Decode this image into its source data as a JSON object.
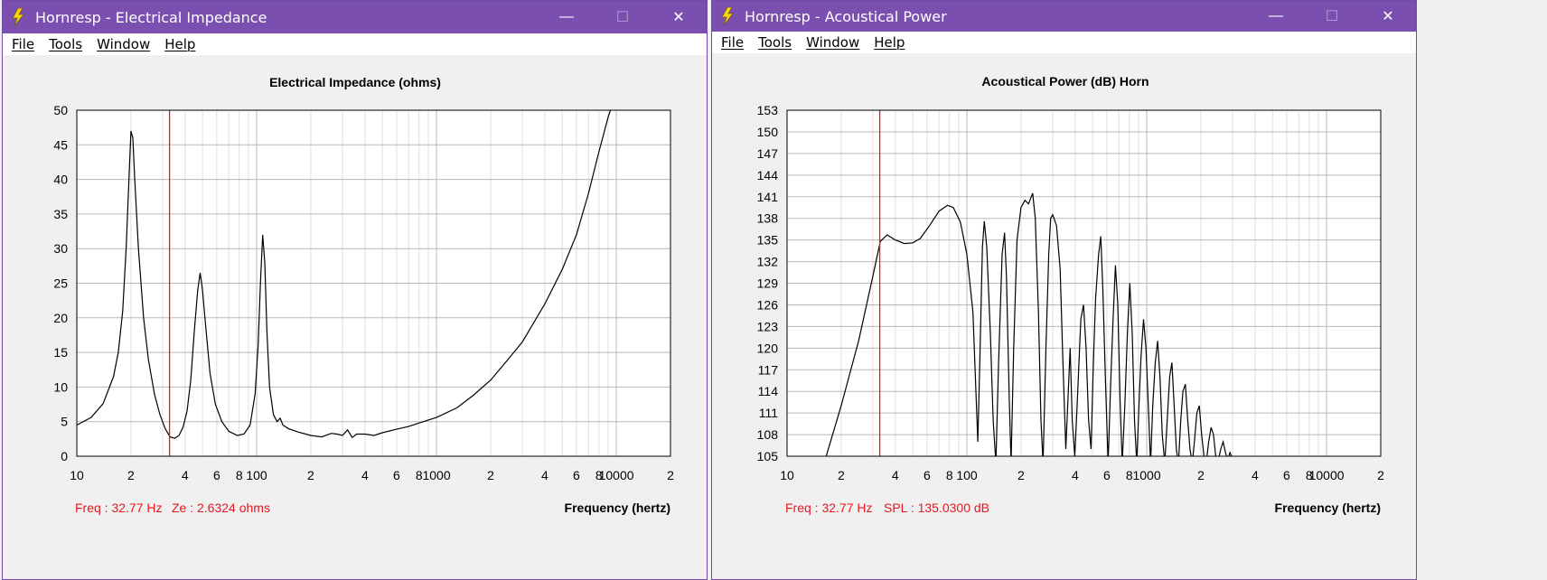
{
  "windows": [
    {
      "title": "Hornresp - Electrical Impedance",
      "menu": [
        "File",
        "Tools",
        "Window",
        "Help"
      ],
      "controls": {
        "minimize": "—",
        "maximize": "☐",
        "close": "✕"
      },
      "chart_data": {
        "type": "line",
        "title": "Electrical Impedance (ohms)",
        "xlabel": "Frequency (hertz)",
        "ylabel": "",
        "x_scale": "log",
        "xlim": [
          10,
          20000
        ],
        "ylim": [
          0,
          50
        ],
        "y_ticks": [
          0,
          5,
          10,
          15,
          20,
          25,
          30,
          35,
          40,
          45,
          50
        ],
        "x_ticks": [
          {
            "v": 10,
            "label": "10"
          },
          {
            "v": 20,
            "label": "2"
          },
          {
            "v": 40,
            "label": "4"
          },
          {
            "v": 60,
            "label": "6"
          },
          {
            "v": 80,
            "label": "8"
          },
          {
            "v": 100,
            "label": "100"
          },
          {
            "v": 200,
            "label": "2"
          },
          {
            "v": 400,
            "label": "4"
          },
          {
            "v": 600,
            "label": "6"
          },
          {
            "v": 800,
            "label": "8"
          },
          {
            "v": 1000,
            "label": "1000"
          },
          {
            "v": 2000,
            "label": "2"
          },
          {
            "v": 4000,
            "label": "4"
          },
          {
            "v": 6000,
            "label": "6"
          },
          {
            "v": 8000,
            "label": "8"
          },
          {
            "v": 10000,
            "label": "10000"
          },
          {
            "v": 20000,
            "label": "2"
          }
        ],
        "grid": true,
        "cursor_x": 32.77,
        "readout": {
          "freq": "Freq : 32.77 Hz",
          "value": "Ze : 2.6324 ohms"
        },
        "series": [
          {
            "points": [
              [
                10,
                4.5
              ],
              [
                12,
                5.6
              ],
              [
                14,
                7.6
              ],
              [
                16,
                11.5
              ],
              [
                17,
                15
              ],
              [
                18,
                21
              ],
              [
                18.8,
                30
              ],
              [
                19.5,
                40
              ],
              [
                20,
                47
              ],
              [
                20.5,
                46
              ],
              [
                21,
                40
              ],
              [
                22,
                30
              ],
              [
                23.5,
                20
              ],
              [
                25,
                14
              ],
              [
                27,
                9
              ],
              [
                29,
                6
              ],
              [
                31,
                4
              ],
              [
                33,
                2.8
              ],
              [
                35,
                2.6
              ],
              [
                37,
                3.0
              ],
              [
                39,
                4.2
              ],
              [
                41,
                6.5
              ],
              [
                43,
                11
              ],
              [
                45,
                18
              ],
              [
                47,
                24
              ],
              [
                48.5,
                26.5
              ],
              [
                50,
                24
              ],
              [
                52,
                19
              ],
              [
                55,
                12
              ],
              [
                59,
                7.5
              ],
              [
                64,
                5
              ],
              [
                70,
                3.6
              ],
              [
                78,
                3.0
              ],
              [
                85,
                3.2
              ],
              [
                92,
                4.5
              ],
              [
                98,
                9
              ],
              [
                102,
                16
              ],
              [
                105,
                25
              ],
              [
                108,
                32
              ],
              [
                111,
                28
              ],
              [
                114,
                18
              ],
              [
                118,
                10
              ],
              [
                124,
                6
              ],
              [
                130,
                5
              ],
              [
                135,
                5.5
              ],
              [
                140,
                4.5
              ],
              [
                150,
                4
              ],
              [
                170,
                3.5
              ],
              [
                200,
                3
              ],
              [
                230,
                2.8
              ],
              [
                260,
                3.3
              ],
              [
                280,
                3.2
              ],
              [
                300,
                3.0
              ],
              [
                320,
                3.8
              ],
              [
                340,
                2.7
              ],
              [
                360,
                3.2
              ],
              [
                400,
                3.2
              ],
              [
                450,
                3.0
              ],
              [
                500,
                3.4
              ],
              [
                600,
                3.9
              ],
              [
                700,
                4.3
              ],
              [
                800,
                4.8
              ],
              [
                1000,
                5.6
              ],
              [
                1300,
                7.0
              ],
              [
                1600,
                8.8
              ],
              [
                2000,
                11
              ],
              [
                2500,
                14
              ],
              [
                3000,
                16.5
              ],
              [
                4000,
                22
              ],
              [
                5000,
                27
              ],
              [
                6000,
                32
              ],
              [
                7000,
                38
              ],
              [
                8000,
                44
              ],
              [
                9000,
                49
              ],
              [
                9400,
                50.5
              ]
            ]
          }
        ]
      }
    },
    {
      "title": "Hornresp - Acoustical Power",
      "menu": [
        "File",
        "Tools",
        "Window",
        "Help"
      ],
      "controls": {
        "minimize": "—",
        "maximize": "☐",
        "close": "✕"
      },
      "chart_data": {
        "type": "line",
        "title": "Acoustical Power (dB)    Horn",
        "xlabel": "Frequency (hertz)",
        "ylabel": "",
        "x_scale": "log",
        "xlim": [
          10,
          20000
        ],
        "ylim": [
          105,
          153
        ],
        "y_ticks": [
          105,
          108,
          111,
          114,
          117,
          120,
          123,
          126,
          129,
          132,
          135,
          138,
          141,
          144,
          147,
          150,
          153
        ],
        "x_ticks": [
          {
            "v": 10,
            "label": "10"
          },
          {
            "v": 20,
            "label": "2"
          },
          {
            "v": 40,
            "label": "4"
          },
          {
            "v": 60,
            "label": "6"
          },
          {
            "v": 80,
            "label": "8"
          },
          {
            "v": 100,
            "label": "100"
          },
          {
            "v": 200,
            "label": "2"
          },
          {
            "v": 400,
            "label": "4"
          },
          {
            "v": 600,
            "label": "6"
          },
          {
            "v": 800,
            "label": "8"
          },
          {
            "v": 1000,
            "label": "1000"
          },
          {
            "v": 2000,
            "label": "2"
          },
          {
            "v": 4000,
            "label": "4"
          },
          {
            "v": 6000,
            "label": "6"
          },
          {
            "v": 8000,
            "label": "8"
          },
          {
            "v": 10000,
            "label": "10000"
          },
          {
            "v": 20000,
            "label": "2"
          }
        ],
        "grid": true,
        "cursor_x": 32.77,
        "readout": {
          "freq": "Freq : 32.77 Hz",
          "value": "SPL : 135.0300 dB"
        },
        "series": [
          {
            "points": [
              [
                16.5,
                105
              ],
              [
                20,
                112
              ],
              [
                25,
                121
              ],
              [
                30,
                130
              ],
              [
                33,
                134.8
              ],
              [
                36,
                135.7
              ],
              [
                40,
                135
              ],
              [
                45,
                134.5
              ],
              [
                50,
                134.6
              ],
              [
                55,
                135.2
              ],
              [
                62,
                137
              ],
              [
                70,
                139
              ],
              [
                78,
                139.8
              ],
              [
                84,
                139.5
              ],
              [
                92,
                137.5
              ],
              [
                100,
                133
              ],
              [
                108,
                125
              ],
              [
                115,
                107
              ],
              [
                118,
                118
              ],
              [
                122,
                134
              ],
              [
                125,
                137.6
              ],
              [
                129,
                134
              ],
              [
                135,
                122
              ],
              [
                140,
                110
              ],
              [
                145,
                104
              ],
              [
                150,
                118
              ],
              [
                157,
                133
              ],
              [
                162,
                136
              ],
              [
                166,
                130
              ],
              [
                172,
                113
              ],
              [
                176,
                104
              ],
              [
                182,
                120
              ],
              [
                190,
                135
              ],
              [
                200,
                139.5
              ],
              [
                210,
                140.5
              ],
              [
                220,
                140
              ],
              [
                232,
                141.5
              ],
              [
                240,
                138
              ],
              [
                250,
                125
              ],
              [
                258,
                110
              ],
              [
                265,
                104
              ],
              [
                275,
                120
              ],
              [
                285,
                133
              ],
              [
                292,
                138
              ],
              [
                300,
                138.5
              ],
              [
                315,
                137
              ],
              [
                330,
                131
              ],
              [
                342,
                118
              ],
              [
                355,
                106
              ],
              [
                365,
                113
              ],
              [
                375,
                120
              ],
              [
                385,
                110
              ],
              [
                398,
                105
              ],
              [
                410,
                112
              ],
              [
                430,
                124
              ],
              [
                445,
                126
              ],
              [
                460,
                120
              ],
              [
                475,
                110
              ],
              [
                490,
                106
              ],
              [
                505,
                118
              ],
              [
                520,
                127
              ],
              [
                540,
                133
              ],
              [
                555,
                135.5
              ],
              [
                570,
                128
              ],
              [
                590,
                115
              ],
              [
                610,
                104
              ],
              [
                630,
                115
              ],
              [
                650,
                124
              ],
              [
                670,
                131.5
              ],
              [
                690,
                126
              ],
              [
                710,
                113
              ],
              [
                730,
                104
              ],
              [
                755,
                112
              ],
              [
                780,
                122
              ],
              [
                805,
                129
              ],
              [
                830,
                122
              ],
              [
                855,
                110
              ],
              [
                880,
                104
              ],
              [
                905,
                112
              ],
              [
                930,
                119
              ],
              [
                960,
                124
              ],
              [
                990,
                120
              ],
              [
                1020,
                112
              ],
              [
                1050,
                104
              ],
              [
                1080,
                112
              ],
              [
                1115,
                118
              ],
              [
                1150,
                121
              ],
              [
                1185,
                116
              ],
              [
                1220,
                108
              ],
              [
                1260,
                104
              ],
              [
                1300,
                110
              ],
              [
                1340,
                116
              ],
              [
                1380,
                118
              ],
              [
                1420,
                112
              ],
              [
                1460,
                106
              ],
              [
                1500,
                104
              ],
              [
                1545,
                110
              ],
              [
                1590,
                114
              ],
              [
                1640,
                115
              ],
              [
                1690,
                110
              ],
              [
                1740,
                106
              ],
              [
                1790,
                104
              ],
              [
                1840,
                107
              ],
              [
                1900,
                111
              ],
              [
                1960,
                112
              ],
              [
                2020,
                108
              ],
              [
                2080,
                105
              ],
              [
                2140,
                104
              ],
              [
                2210,
                107
              ],
              [
                2280,
                109
              ],
              [
                2350,
                108
              ],
              [
                2420,
                105
              ],
              [
                2500,
                104.5
              ],
              [
                2580,
                106
              ],
              [
                2660,
                107
              ],
              [
                2740,
                105.5
              ],
              [
                2820,
                104.5
              ],
              [
                2900,
                105.5
              ],
              [
                2960,
                105
              ]
            ]
          }
        ]
      }
    }
  ]
}
